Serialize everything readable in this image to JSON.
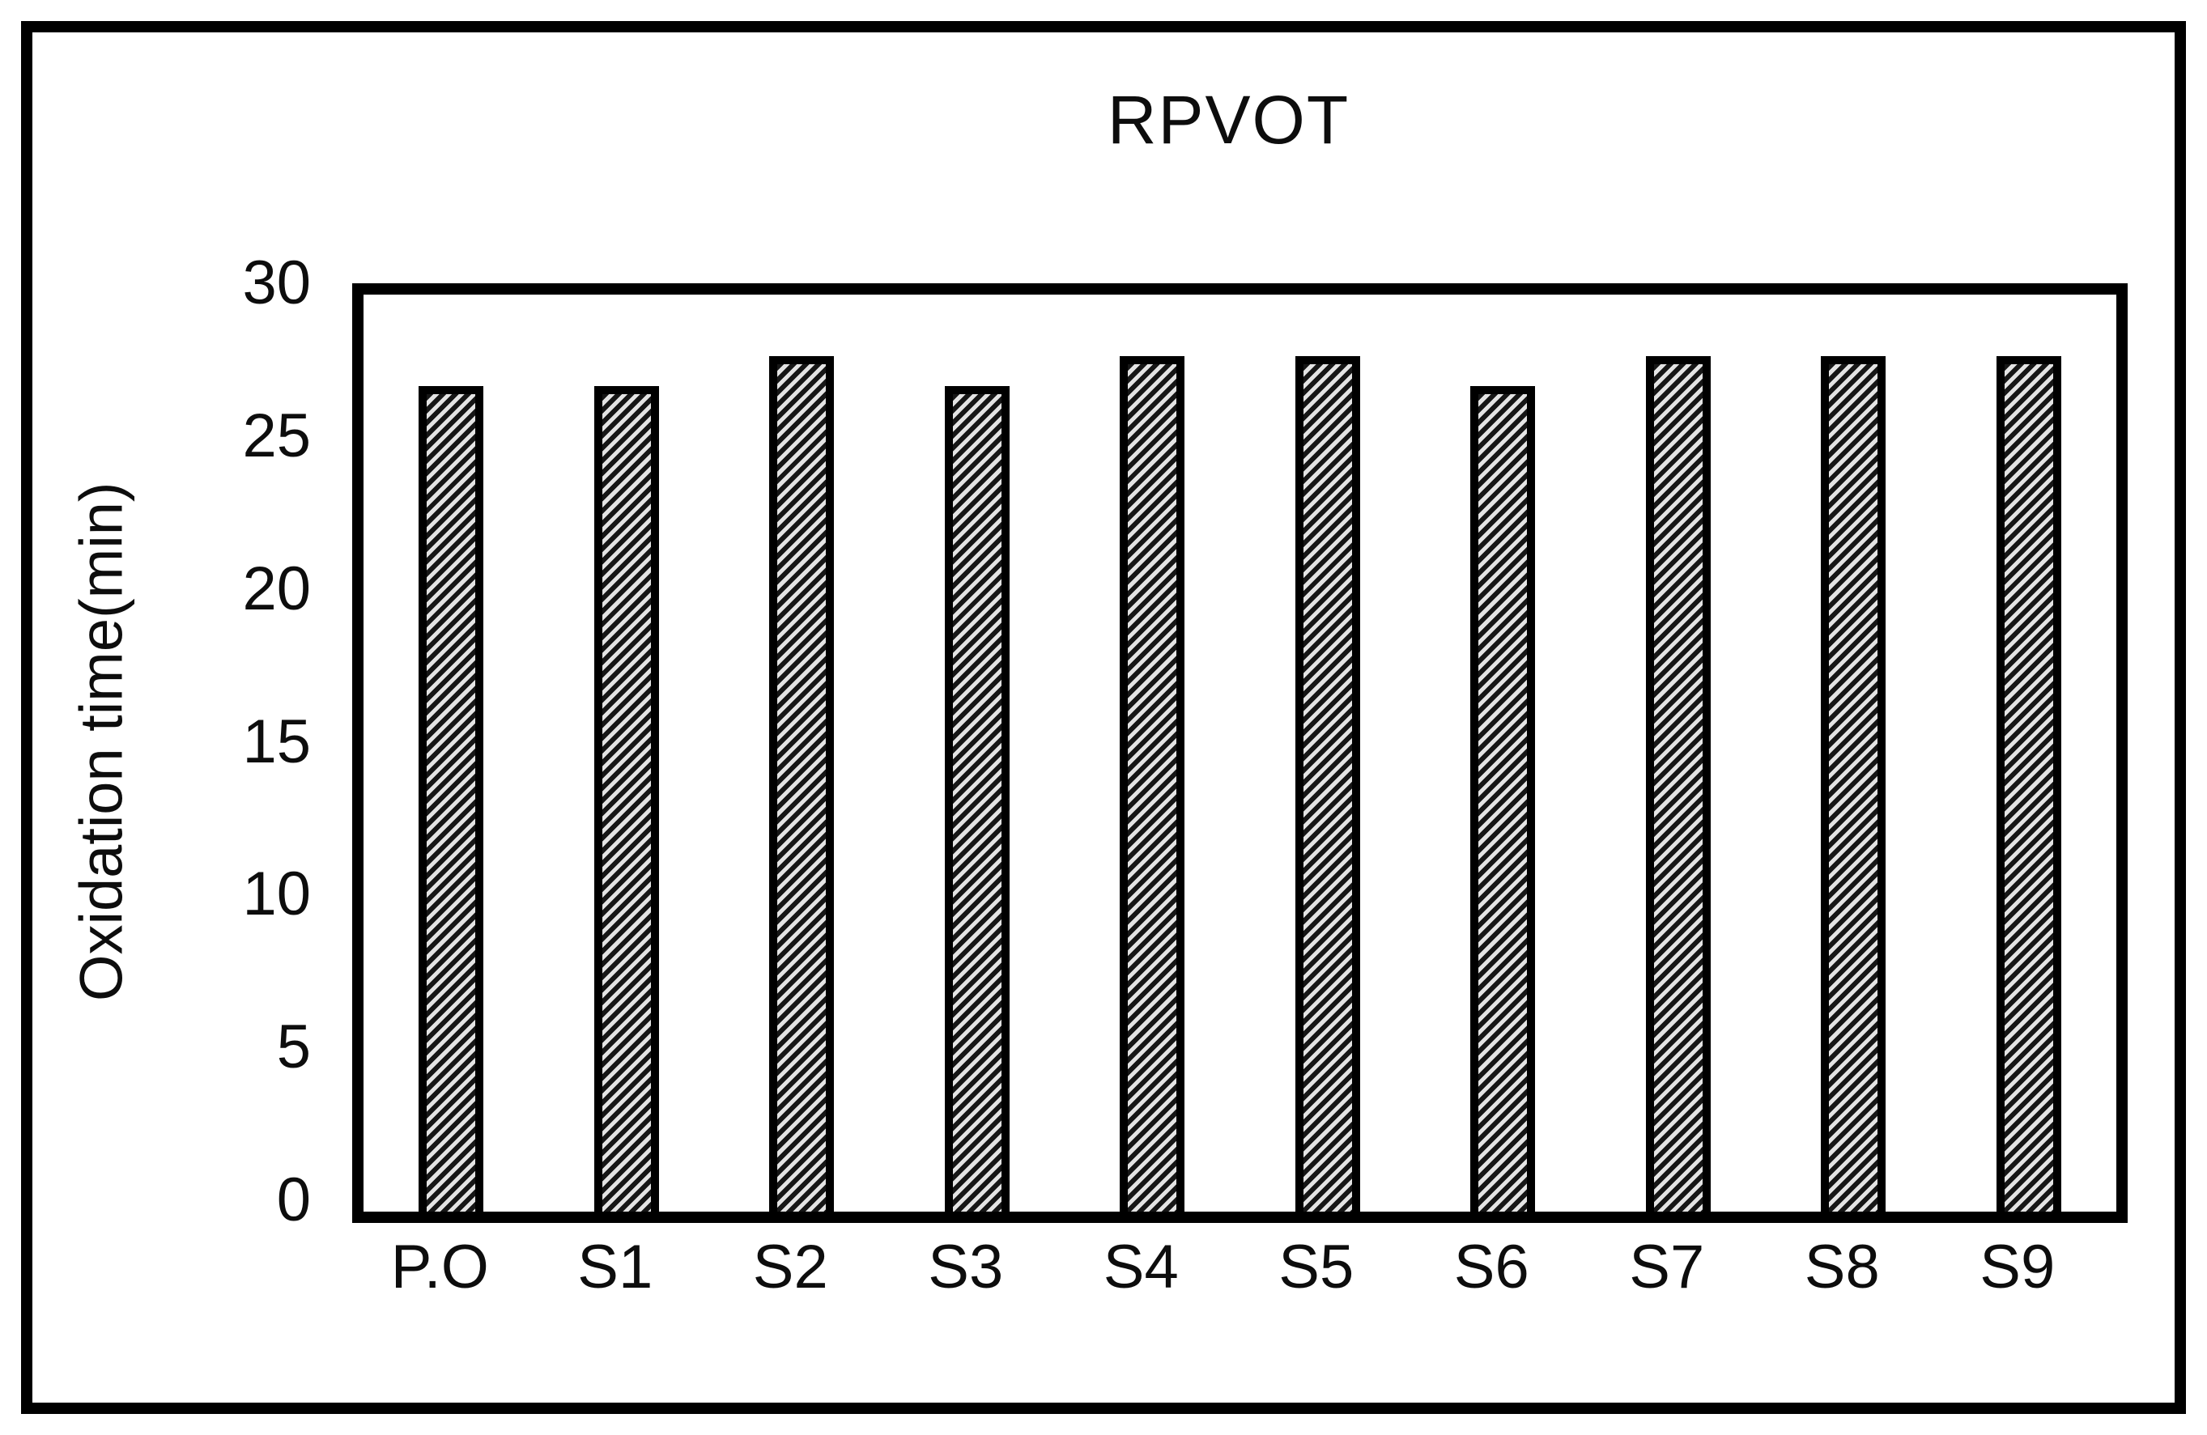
{
  "figure": {
    "title": "RPVOT",
    "y_axis_title": "Oxidation time(min)"
  },
  "chart_data": {
    "type": "bar",
    "title": "RPVOT",
    "xlabel": "",
    "ylabel": "Oxidation time(min)",
    "categories": [
      "P.O",
      "S1",
      "S2",
      "S3",
      "S4",
      "S5",
      "S6",
      "S7",
      "S8",
      "S9"
    ],
    "values": [
      27,
      27,
      28,
      27,
      28,
      28,
      27,
      28,
      28,
      28
    ],
    "ylim": [
      0,
      30
    ],
    "yticks": [
      0,
      5,
      10,
      15,
      20,
      25,
      30
    ],
    "grid": false,
    "legend": false,
    "bar_fill_style": "diagonal-hatch",
    "bar_fill_light": "#e3e3e3",
    "bar_fill_dark": "#161616",
    "bar_border_color": "#000000",
    "frame_color": "#000000",
    "background_color": "#ffffff"
  }
}
